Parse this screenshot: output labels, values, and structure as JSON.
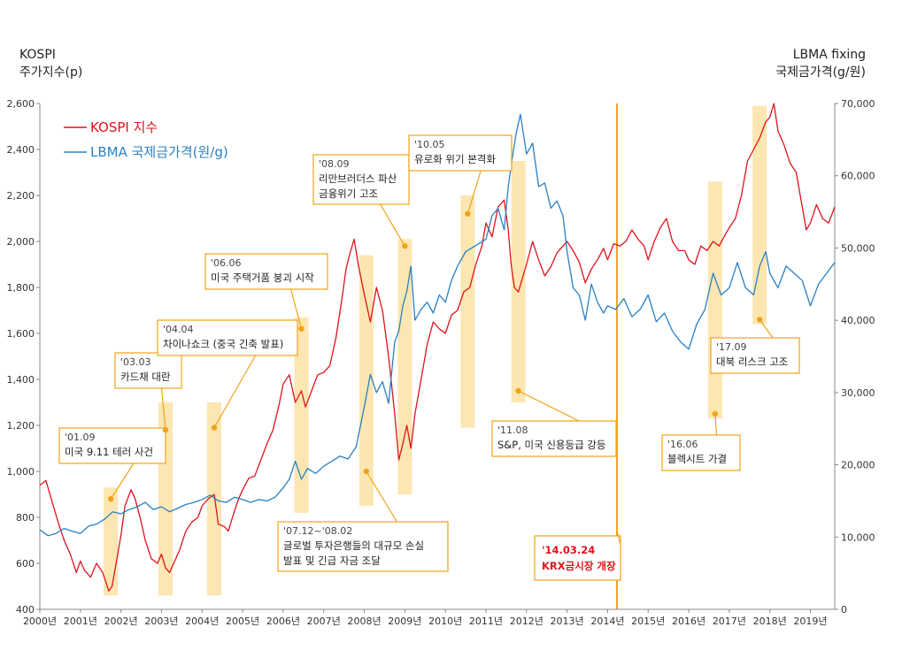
{
  "chart_data": {
    "type": "line",
    "title": "",
    "left_axis": {
      "label_line1": "KOSPI",
      "label_line2": "주가지수(p)",
      "range": [
        400,
        2600
      ],
      "ticks": [
        400,
        600,
        800,
        1000,
        1200,
        1400,
        1600,
        1800,
        2000,
        2200,
        2400,
        2600
      ],
      "tick_labels": [
        "400",
        "600",
        "800",
        "1,000",
        "1,200",
        "1,400",
        "1,600",
        "1,800",
        "2,000",
        "2,200",
        "2,400",
        "2,600"
      ]
    },
    "right_axis": {
      "label_line1": "LBMA fixing",
      "label_line2": "국제금가격(g/원)",
      "range": [
        0,
        70000
      ],
      "ticks": [
        0,
        10000,
        20000,
        30000,
        40000,
        50000,
        60000,
        70000
      ],
      "tick_labels": [
        "0",
        "10,000",
        "20,000",
        "30,000",
        "40,000",
        "50,000",
        "60,000",
        "70,000"
      ]
    },
    "x_axis": {
      "range": [
        2000,
        2019.6
      ],
      "tick_labels": [
        "2000년",
        "2001년",
        "2002년",
        "2003년",
        "2004년",
        "2005년",
        "2006년",
        "2007년",
        "2008년",
        "2009년",
        "2010년",
        "2011년",
        "2012년",
        "2013년",
        "2014년",
        "2015년",
        "2016년",
        "2017년",
        "2018년",
        "2019년"
      ]
    },
    "series": [
      {
        "name": "KOSPI 지수",
        "color": "#e0121b",
        "axis": "left",
        "x": [
          2000.0,
          2000.15,
          2000.3,
          2000.45,
          2000.6,
          2000.75,
          2000.9,
          2001.0,
          2001.1,
          2001.25,
          2001.4,
          2001.55,
          2001.7,
          2001.78,
          2001.9,
          2002.0,
          2002.1,
          2002.25,
          2002.35,
          2002.5,
          2002.6,
          2002.75,
          2002.9,
          2003.0,
          2003.1,
          2003.2,
          2003.3,
          2003.45,
          2003.6,
          2003.75,
          2003.9,
          2004.0,
          2004.15,
          2004.3,
          2004.4,
          2004.55,
          2004.65,
          2004.75,
          2004.9,
          2005.0,
          2005.15,
          2005.3,
          2005.45,
          2005.6,
          2005.75,
          2005.9,
          2006.0,
          2006.15,
          2006.3,
          2006.45,
          2006.55,
          2006.7,
          2006.85,
          2007.0,
          2007.15,
          2007.3,
          2007.45,
          2007.55,
          2007.65,
          2007.75,
          2007.85,
          2008.0,
          2008.15,
          2008.3,
          2008.45,
          2008.6,
          2008.75,
          2008.85,
          2008.95,
          2009.05,
          2009.15,
          2009.25,
          2009.4,
          2009.55,
          2009.7,
          2009.85,
          2010.0,
          2010.15,
          2010.3,
          2010.45,
          2010.6,
          2010.75,
          2010.9,
          2011.0,
          2011.15,
          2011.3,
          2011.45,
          2011.55,
          2011.62,
          2011.7,
          2011.8,
          2011.9,
          2012.0,
          2012.15,
          2012.3,
          2012.45,
          2012.6,
          2012.75,
          2012.9,
          2013.0,
          2013.15,
          2013.3,
          2013.45,
          2013.6,
          2013.75,
          2013.9,
          2014.0,
          2014.15,
          2014.3,
          2014.45,
          2014.6,
          2014.75,
          2014.9,
          2015.0,
          2015.15,
          2015.3,
          2015.45,
          2015.6,
          2015.75,
          2015.9,
          2016.0,
          2016.15,
          2016.3,
          2016.45,
          2016.6,
          2016.75,
          2016.9,
          2017.0,
          2017.15,
          2017.3,
          2017.45,
          2017.6,
          2017.75,
          2017.9,
          2018.0,
          2018.1,
          2018.2,
          2018.35,
          2018.5,
          2018.65,
          2018.8,
          2018.9,
          2019.0,
          2019.15,
          2019.3,
          2019.45,
          2019.6
        ],
        "y": [
          940,
          960,
          870,
          780,
          700,
          640,
          560,
          610,
          570,
          540,
          600,
          560,
          480,
          500,
          620,
          720,
          850,
          920,
          880,
          780,
          700,
          620,
          600,
          640,
          580,
          560,
          600,
          660,
          740,
          780,
          800,
          850,
          880,
          900,
          770,
          760,
          740,
          800,
          880,
          920,
          970,
          980,
          1050,
          1120,
          1180,
          1290,
          1380,
          1420,
          1300,
          1350,
          1280,
          1350,
          1420,
          1430,
          1460,
          1580,
          1750,
          1880,
          1950,
          2010,
          1900,
          1770,
          1650,
          1800,
          1700,
          1500,
          1250,
          1050,
          1120,
          1200,
          1100,
          1250,
          1400,
          1550,
          1650,
          1620,
          1600,
          1680,
          1700,
          1780,
          1800,
          1900,
          1980,
          2080,
          2020,
          2150,
          2180,
          2050,
          1900,
          1800,
          1780,
          1840,
          1900,
          2000,
          1920,
          1850,
          1890,
          1950,
          1980,
          2000,
          1960,
          1910,
          1820,
          1880,
          1920,
          1970,
          1920,
          1990,
          1980,
          2000,
          2050,
          2010,
          1980,
          1920,
          2000,
          2060,
          2100,
          2000,
          1960,
          1960,
          1920,
          1900,
          1980,
          1960,
          2000,
          1980,
          2030,
          2060,
          2100,
          2200,
          2350,
          2400,
          2450,
          2520,
          2540,
          2600,
          2480,
          2420,
          2340,
          2300,
          2150,
          2050,
          2080,
          2160,
          2100,
          2080,
          2150
        ]
      },
      {
        "name": "LBMA 국제금가격(원/g)",
        "color": "#2980c4",
        "axis": "right",
        "x": [
          2000.0,
          2000.2,
          2000.4,
          2000.6,
          2000.8,
          2001.0,
          2001.2,
          2001.4,
          2001.6,
          2001.8,
          2002.0,
          2002.2,
          2002.4,
          2002.6,
          2002.8,
          2003.0,
          2003.2,
          2003.4,
          2003.6,
          2003.8,
          2004.0,
          2004.2,
          2004.4,
          2004.6,
          2004.8,
          2005.0,
          2005.2,
          2005.4,
          2005.6,
          2005.8,
          2006.0,
          2006.15,
          2006.3,
          2006.45,
          2006.6,
          2006.8,
          2007.0,
          2007.2,
          2007.4,
          2007.6,
          2007.8,
          2008.0,
          2008.15,
          2008.3,
          2008.45,
          2008.6,
          2008.75,
          2008.85,
          2008.95,
          2009.05,
          2009.15,
          2009.25,
          2009.4,
          2009.55,
          2009.7,
          2009.85,
          2010.0,
          2010.15,
          2010.3,
          2010.5,
          2010.65,
          2010.8,
          2011.0,
          2011.15,
          2011.3,
          2011.45,
          2011.55,
          2011.65,
          2011.75,
          2011.85,
          2012.0,
          2012.15,
          2012.3,
          2012.45,
          2012.6,
          2012.75,
          2012.9,
          2013.0,
          2013.15,
          2013.3,
          2013.45,
          2013.6,
          2013.75,
          2013.9,
          2014.0,
          2014.2,
          2014.4,
          2014.6,
          2014.8,
          2015.0,
          2015.2,
          2015.4,
          2015.6,
          2015.8,
          2016.0,
          2016.2,
          2016.4,
          2016.6,
          2016.8,
          2017.0,
          2017.2,
          2017.4,
          2017.6,
          2017.75,
          2017.9,
          2018.0,
          2018.2,
          2018.4,
          2018.6,
          2018.8,
          2019.0,
          2019.2,
          2019.4,
          2019.6
        ],
        "y": [
          11000,
          10200,
          10500,
          11200,
          10800,
          10500,
          11500,
          11800,
          12500,
          13500,
          13200,
          13800,
          14200,
          14800,
          13800,
          14200,
          13500,
          14000,
          14500,
          14800,
          15200,
          15800,
          15000,
          14800,
          15500,
          15200,
          14800,
          15200,
          15000,
          15500,
          16800,
          18000,
          20500,
          18000,
          19500,
          18800,
          19800,
          20500,
          21200,
          20800,
          22500,
          28000,
          32500,
          30000,
          31500,
          28500,
          37000,
          38500,
          42000,
          44000,
          47500,
          40000,
          41500,
          42500,
          41000,
          43500,
          42500,
          45500,
          47500,
          49500,
          50000,
          50500,
          51200,
          54500,
          55500,
          52500,
          58500,
          62500,
          66000,
          68500,
          63000,
          64500,
          58500,
          59000,
          55500,
          56500,
          54500,
          49500,
          44500,
          43500,
          40000,
          45000,
          42500,
          41000,
          42000,
          41500,
          43000,
          40500,
          41500,
          43500,
          39800,
          41000,
          38500,
          37000,
          36000,
          39500,
          41500,
          46500,
          43500,
          44500,
          48000,
          44500,
          43500,
          47500,
          49500,
          46500,
          44500,
          47500,
          46500,
          45500,
          42000,
          45000,
          46500,
          48000
        ]
      }
    ],
    "annotations": [
      {
        "id": "a0109",
        "date": "'01.09",
        "lines": [
          "미국 9.11 테러 사건"
        ],
        "x": 2001.75,
        "y_left": 880,
        "band_left": [
          460,
          930
        ]
      },
      {
        "id": "a0303",
        "date": "'03.03",
        "lines": [
          "카드채 대란"
        ],
        "x": 2003.1,
        "y_left": 1180,
        "band_left": [
          460,
          1300
        ]
      },
      {
        "id": "a0404",
        "date": "'04.04",
        "lines": [
          "차이나쇼크 (중국 긴축 발표)"
        ],
        "x": 2004.3,
        "y_left": 1190,
        "band_left": [
          460,
          1300
        ]
      },
      {
        "id": "a0606",
        "date": "'06.06",
        "lines": [
          "미국 주택거품 붕괴 시작"
        ],
        "x": 2006.45,
        "y_left": 1620,
        "band_left": [
          820,
          1670
        ]
      },
      {
        "id": "a0712",
        "date": "'07.12~'08.02",
        "lines": [
          "글로벌 투자은행들의 대규모 손실",
          "발표 및 긴급 자금 조달"
        ],
        "x": 2008.05,
        "y_left": 1000,
        "band_left": [
          850,
          1940
        ]
      },
      {
        "id": "a0809",
        "date": "'08.09",
        "lines": [
          "리만브러더스 파산",
          "금융위기 고조"
        ],
        "x": 2009.0,
        "y_left": 1980,
        "band_left": [
          900,
          2010
        ]
      },
      {
        "id": "a1005",
        "date": "'10.05",
        "lines": [
          "유로화 위기 본격화"
        ],
        "x": 2010.55,
        "y_left": 2120,
        "band_left": [
          1190,
          2200
        ]
      },
      {
        "id": "a1108",
        "date": "'11.08",
        "lines": [
          "S&P, 미국 신용등급 강등"
        ],
        "x": 2011.8,
        "y_left": 1350,
        "band_left": [
          1300,
          2350
        ]
      },
      {
        "id": "a1606",
        "date": "'16.06",
        "lines": [
          "블렉시트 가결"
        ],
        "x": 2016.65,
        "y_left": 1250,
        "band_left": [
          1230,
          2260
        ]
      },
      {
        "id": "a1709",
        "date": "'17.09",
        "lines": [
          "대북 리스크 고조"
        ],
        "x": 2017.75,
        "y_left": 1660,
        "band_left": [
          1640,
          2590
        ]
      }
    ],
    "event_line": {
      "date": "'14.03.24",
      "label": "KRX금시장 개장",
      "x": 2014.23,
      "color": "#f0a417"
    },
    "legend_position": "top-left",
    "band_color": "#fbe2a4",
    "annotation_color": "#f0a417"
  }
}
